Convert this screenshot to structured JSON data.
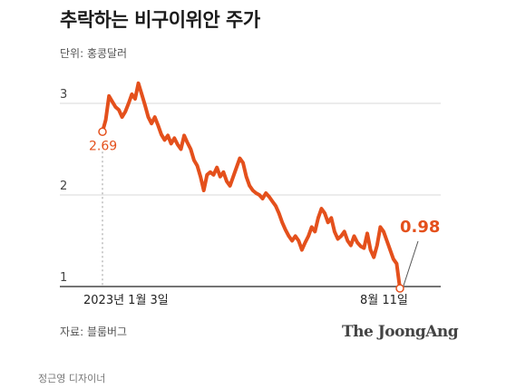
{
  "header": {
    "title": "추락하는 비구이위안 주가",
    "unit": "단위: 홍콩달러"
  },
  "footer": {
    "source": "자료: 블룸버그",
    "brand": "The JoongAng",
    "credit": "정근영 디자이너"
  },
  "colors": {
    "line": "#e4501c",
    "grid": "#d9d9d9",
    "axis": "#222222"
  },
  "chart_data": {
    "type": "line",
    "title": "추락하는 비구이위안 주가",
    "ylabel": "단위: 홍콩달러",
    "ylim": [
      1,
      3
    ],
    "y_ticks": [
      "1",
      "2",
      "3"
    ],
    "grid": true,
    "x_labels": [
      "2023년 1월 3일",
      "8월 11일"
    ],
    "start_label": "2.69",
    "end_label": "0.98",
    "series": [
      {
        "values": [
          2.69,
          2.82,
          3.08,
          3.02,
          2.96,
          2.93,
          2.85,
          2.91,
          3.0,
          3.1,
          3.05,
          3.22,
          3.1,
          2.98,
          2.85,
          2.78,
          2.85,
          2.76,
          2.66,
          2.6,
          2.65,
          2.56,
          2.62,
          2.55,
          2.5,
          2.65,
          2.57,
          2.5,
          2.38,
          2.32,
          2.2,
          2.05,
          2.22,
          2.25,
          2.22,
          2.3,
          2.2,
          2.25,
          2.15,
          2.1,
          2.2,
          2.3,
          2.4,
          2.35,
          2.2,
          2.1,
          2.05,
          2.02,
          2.0,
          1.96,
          2.02,
          1.98,
          1.93,
          1.88,
          1.8,
          1.7,
          1.62,
          1.55,
          1.5,
          1.55,
          1.5,
          1.4,
          1.48,
          1.55,
          1.65,
          1.6,
          1.75,
          1.85,
          1.8,
          1.7,
          1.75,
          1.6,
          1.52,
          1.55,
          1.6,
          1.5,
          1.45,
          1.55,
          1.48,
          1.44,
          1.42,
          1.58,
          1.4,
          1.32,
          1.45,
          1.65,
          1.6,
          1.5,
          1.4,
          1.3,
          1.25,
          0.98
        ]
      }
    ]
  }
}
